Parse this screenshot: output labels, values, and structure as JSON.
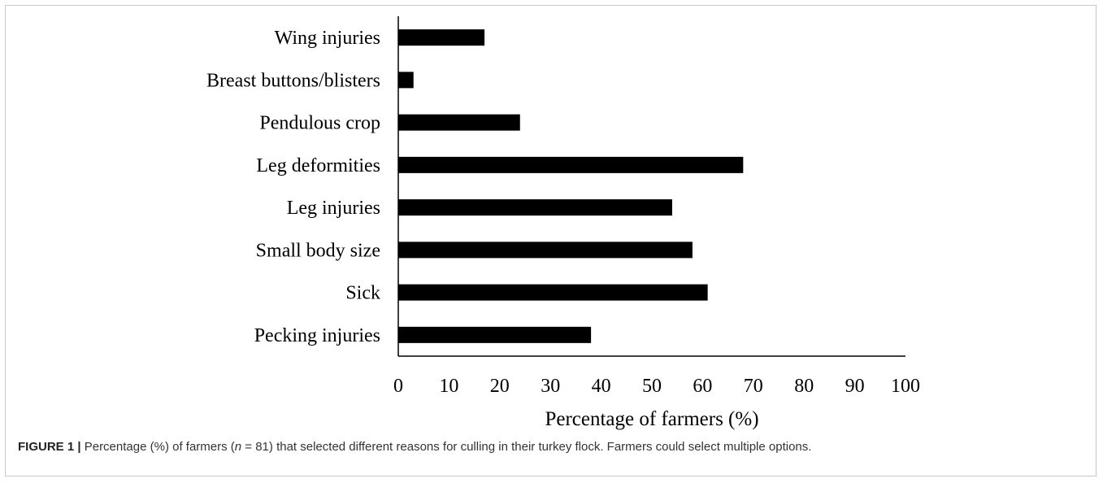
{
  "chart_data": {
    "type": "bar",
    "orientation": "horizontal",
    "categories": [
      "Wing injuries",
      "Breast buttons/blisters",
      "Pendulous crop",
      "Leg deformities",
      "Leg injuries",
      "Small body size",
      "Sick",
      "Pecking injuries"
    ],
    "values": [
      17,
      3,
      24,
      68,
      54,
      58,
      61,
      38
    ],
    "xlabel": "Percentage of farmers (%)",
    "ylabel": "",
    "xlim": [
      0,
      100
    ],
    "xticks": [
      "0",
      "10",
      "20",
      "30",
      "40",
      "50",
      "60",
      "70",
      "80",
      "90",
      "100"
    ],
    "grid": false,
    "bar_color": "#000000"
  },
  "caption": {
    "label": "FIGURE 1 |",
    "text_before_n": "Percentage (%) of farmers (",
    "n_symbol": "n",
    "text_after_n": " = 81) that selected different reasons for culling in their turkey flock. Farmers could select multiple options."
  }
}
